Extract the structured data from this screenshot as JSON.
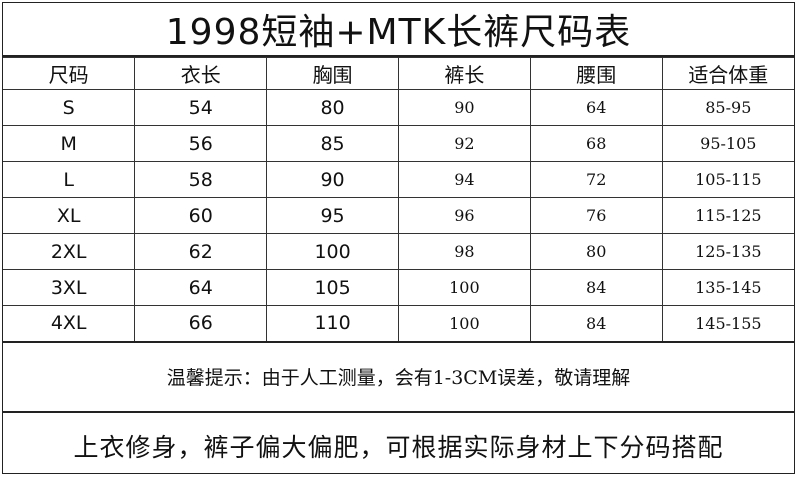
{
  "title": "1998短袖+MTK长裤尺码表",
  "table": {
    "headers": [
      "尺码",
      "衣长",
      "胸围",
      "裤长",
      "腰围",
      "适合体重"
    ],
    "rows": [
      [
        "S",
        "54",
        "80",
        "90",
        "64",
        "85-95"
      ],
      [
        "M",
        "56",
        "85",
        "92",
        "68",
        "95-105"
      ],
      [
        "L",
        "58",
        "90",
        "94",
        "72",
        "105-115"
      ],
      [
        "XL",
        "60",
        "95",
        "96",
        "76",
        "115-125"
      ],
      [
        "2XL",
        "62",
        "100",
        "98",
        "80",
        "125-135"
      ],
      [
        "3XL",
        "64",
        "105",
        "100",
        "84",
        "135-145"
      ],
      [
        "4XL",
        "66",
        "110",
        "100",
        "84",
        "145-155"
      ]
    ]
  },
  "notice": "温馨提示：由于人工测量，会有1-3CM误差，敬请理解",
  "footer": "上衣修身，裤子偏大偏肥，可根据实际身材上下分码搭配"
}
